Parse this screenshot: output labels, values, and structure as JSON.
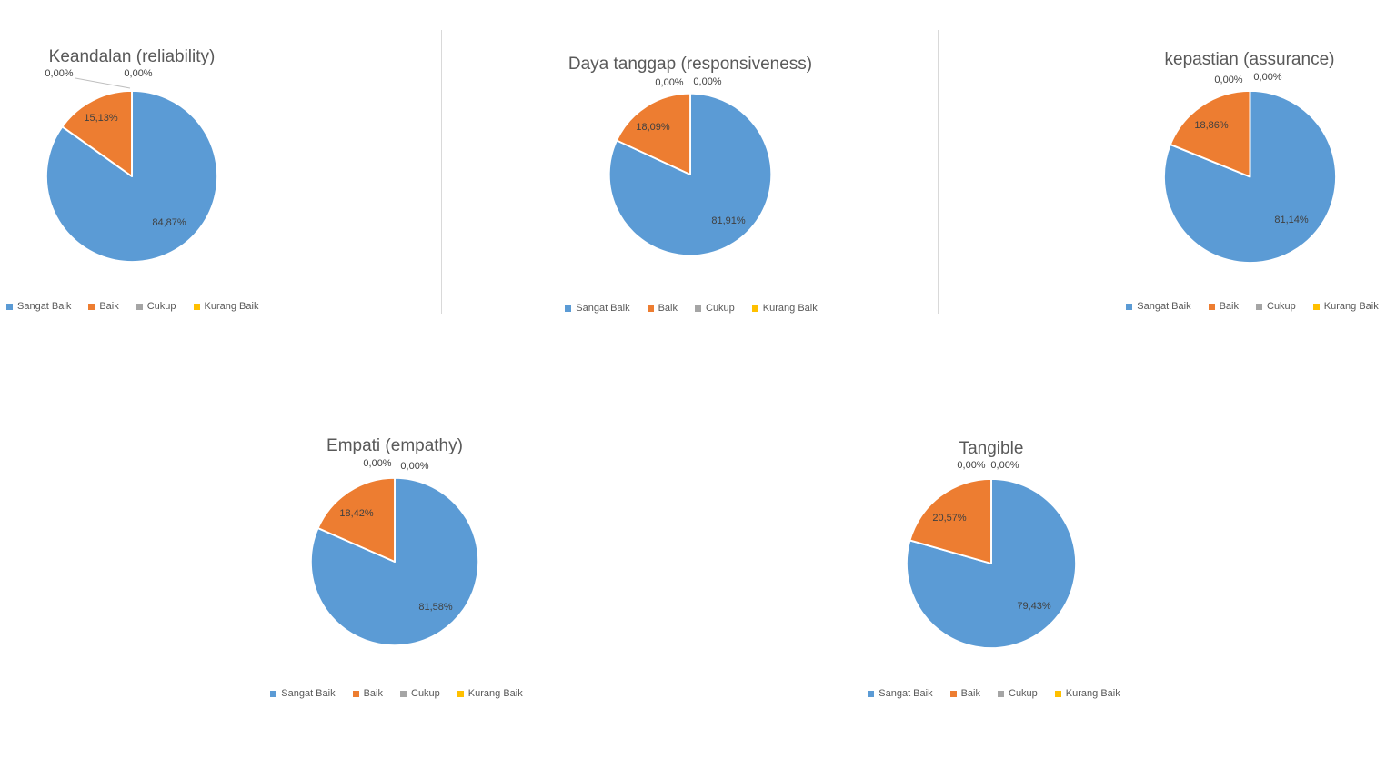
{
  "page": {
    "background": "#FFFFFF"
  },
  "colors": {
    "series": [
      "#5B9BD5",
      "#ED7D31",
      "#A5A5A5",
      "#FFC000"
    ],
    "title_text": "#595959",
    "label_text": "#404040",
    "legend_text": "#595959",
    "divider": "#D9D9D9",
    "leader_line": "#BFBFBF"
  },
  "chart_data": [
    {
      "type": "pie",
      "title": "Keandalan (reliability)",
      "categories": [
        "Sangat Baik",
        "Baik",
        "Cukup",
        "Kurang Baik"
      ],
      "values": [
        84.87,
        15.13,
        0,
        0
      ],
      "value_labels": [
        "84,87%",
        "15,13%",
        "0,00%",
        "0,00%"
      ],
      "legend_position": "bottom"
    },
    {
      "type": "pie",
      "title": "Daya tanggap (responsiveness)",
      "categories": [
        "Sangat Baik",
        "Baik",
        "Cukup",
        "Kurang Baik"
      ],
      "values": [
        81.91,
        18.09,
        0,
        0
      ],
      "value_labels": [
        "81,91%",
        "18,09%",
        "0,00%",
        "0,00%"
      ],
      "legend_position": "bottom"
    },
    {
      "type": "pie",
      "title": "kepastian (assurance)",
      "categories": [
        "Sangat Baik",
        "Baik",
        "Cukup",
        "Kurang Baik"
      ],
      "values": [
        81.14,
        18.86,
        0,
        0
      ],
      "value_labels": [
        "81,14%",
        "18,86%",
        "0,00%",
        "0,00%"
      ],
      "legend_position": "bottom"
    },
    {
      "type": "pie",
      "title": "Empati (empathy)",
      "categories": [
        "Sangat Baik",
        "Baik",
        "Cukup",
        "Kurang Baik"
      ],
      "values": [
        81.58,
        18.42,
        0,
        0
      ],
      "value_labels": [
        "81,58%",
        "18,42%",
        "0,00%",
        "0,00%"
      ],
      "legend_position": "bottom"
    },
    {
      "type": "pie",
      "title": "Tangible",
      "categories": [
        "Sangat Baik",
        "Baik",
        "Cukup",
        "Kurang Baik"
      ],
      "values": [
        79.43,
        20.57,
        0,
        0
      ],
      "value_labels": [
        "79,43%",
        "20,57%",
        "0,00%",
        "0,00%"
      ],
      "legend_position": "bottom"
    }
  ]
}
